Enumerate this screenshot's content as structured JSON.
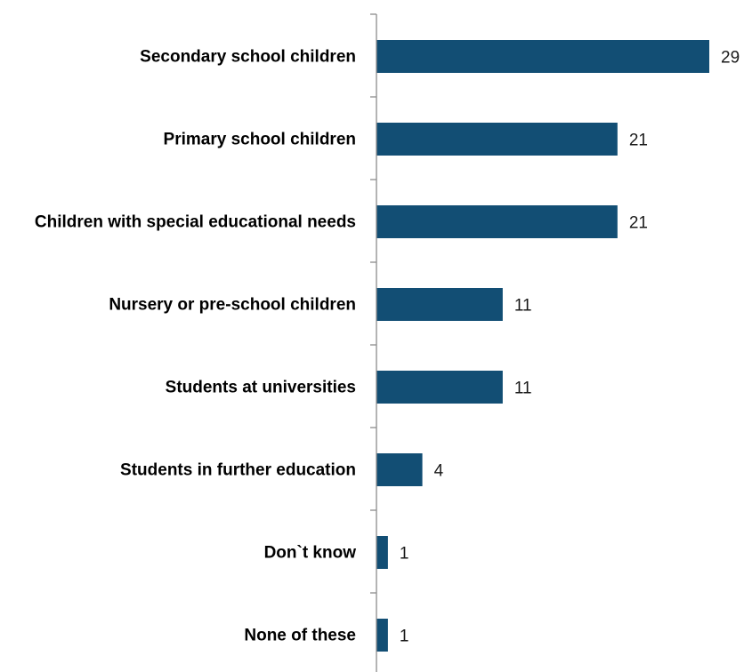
{
  "chart_data": {
    "type": "bar",
    "orientation": "horizontal",
    "categories": [
      "Secondary school children",
      "Primary school children",
      "Children with special educational needs",
      "Nursery or pre-school children",
      "Students at universities",
      "Students in further education",
      "Don`t know",
      "None of these"
    ],
    "values": [
      29,
      21,
      21,
      11,
      11,
      4,
      1,
      1
    ],
    "bar_color": "#124e74",
    "xlim": [
      0,
      29
    ],
    "grid": false,
    "data_labels": true,
    "title": "",
    "xlabel": "",
    "ylabel": ""
  }
}
